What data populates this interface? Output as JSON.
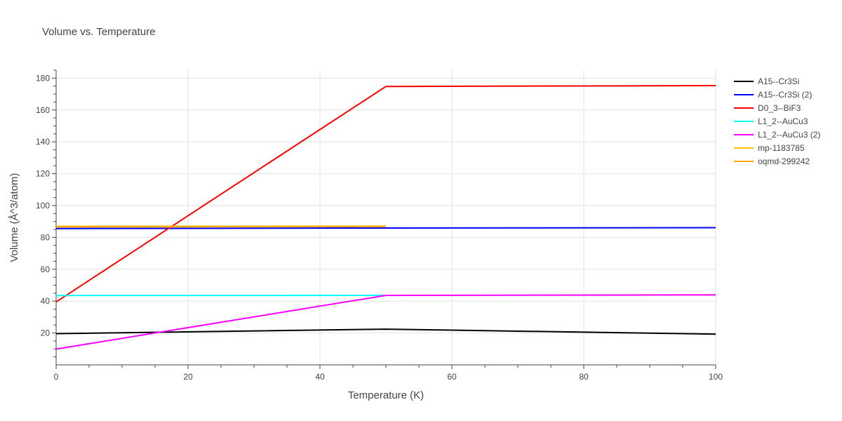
{
  "chart_data": {
    "type": "line",
    "title": "Volume vs. Temperature",
    "xlabel": "Temperature (K)",
    "ylabel": "Volume (Å^3/atom)",
    "xlim": [
      0,
      100
    ],
    "ylim": [
      0,
      185
    ],
    "xticks": [
      0,
      20,
      40,
      60,
      80,
      100
    ],
    "yticks": [
      20,
      40,
      60,
      80,
      100,
      120,
      140,
      160,
      180
    ],
    "grid": true,
    "legend_position": "right",
    "series": [
      {
        "name": "A15--Cr3Si",
        "color": "#000000",
        "x": [
          0,
          50,
          100
        ],
        "y": [
          19.6,
          22.4,
          19.3
        ]
      },
      {
        "name": "A15--Cr3Si (2)",
        "color": "#0000ff",
        "x": [
          0,
          50,
          100
        ],
        "y": [
          85.6,
          85.9,
          86.1
        ]
      },
      {
        "name": "D0_3--BiF3",
        "color": "#ff0000",
        "x": [
          0,
          50,
          100
        ],
        "y": [
          39.5,
          174.8,
          175.3
        ]
      },
      {
        "name": "L1_2--AuCu3",
        "color": "#00ffff",
        "x": [
          0,
          50
        ],
        "y": [
          43.5,
          43.6
        ]
      },
      {
        "name": "L1_2--AuCu3 (2)",
        "color": "#ff00ff",
        "x": [
          0,
          50,
          100
        ],
        "y": [
          9.9,
          43.6,
          43.9
        ]
      },
      {
        "name": "mp-1183785",
        "color": "#ffc000",
        "x": [
          0,
          50
        ],
        "y": [
          87.0,
          87.1
        ]
      },
      {
        "name": "oqmd-299242",
        "color": "#ffa500",
        "x": [
          0,
          50
        ],
        "y": [
          86.6,
          86.8
        ]
      }
    ]
  }
}
